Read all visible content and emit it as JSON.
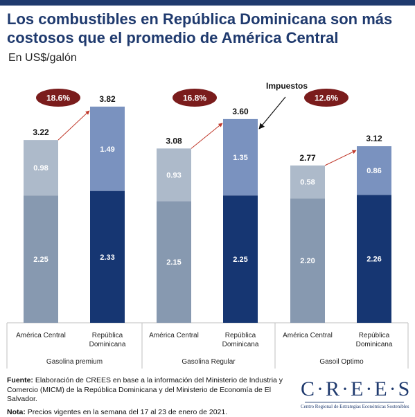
{
  "title": "Los combustibles en República Dominicana son más costosos que el promedio de América Central",
  "subtitle": "En US$/galón",
  "chart_data": {
    "type": "bar",
    "stacked": true,
    "title": "Los combustibles en República Dominicana son más costosos que el promedio de América Central",
    "ylabel": "En US$/galón",
    "ylim": [
      0,
      4.5
    ],
    "grid": false,
    "groups": [
      {
        "name": "Gasolina premium",
        "pct_diff": "18.6%",
        "bars": [
          {
            "category": "América Central",
            "base": 2.25,
            "tax": 0.98,
            "total": "3.22",
            "base_label": "2.25",
            "tax_label": "0.98",
            "base_color": "#8799b0",
            "tax_color": "#adbaca"
          },
          {
            "category": "República Dominicana",
            "base": 2.33,
            "tax": 1.49,
            "total": "3.82",
            "base_label": "2.33",
            "tax_label": "1.49",
            "base_color": "#163672",
            "tax_color": "#7a92bf"
          }
        ]
      },
      {
        "name": "Gasolina Regular",
        "pct_diff": "16.8%",
        "bars": [
          {
            "category": "América Central",
            "base": 2.15,
            "tax": 0.93,
            "total": "3.08",
            "base_label": "2.15",
            "tax_label": "0.93",
            "base_color": "#8799b0",
            "tax_color": "#adbaca"
          },
          {
            "category": "República Dominicana",
            "base": 2.25,
            "tax": 1.35,
            "total": "3.60",
            "base_label": "2.25",
            "tax_label": "1.35",
            "base_color": "#163672",
            "tax_color": "#7a92bf"
          }
        ]
      },
      {
        "name": "Gasoil Optimo",
        "pct_diff": "12.6%",
        "bars": [
          {
            "category": "América Central",
            "base": 2.2,
            "tax": 0.58,
            "total": "2.77",
            "base_label": "2.20",
            "tax_label": "0.58",
            "base_color": "#8799b0",
            "tax_color": "#adbaca"
          },
          {
            "category": "República Dominicana",
            "base": 2.26,
            "tax": 0.86,
            "total": "3.12",
            "base_label": "2.26",
            "tax_label": "0.86",
            "base_color": "#163672",
            "tax_color": "#7a92bf"
          }
        ]
      }
    ],
    "annotation": {
      "text": "Impuestos"
    },
    "colors": {
      "badge": "#7a1c1c",
      "arrow": "#c0392b",
      "axis": "#bfbfbf"
    }
  },
  "footer": {
    "source_label": "Fuente:",
    "source_text": "Elaboración de CREES en base a la información del Ministerio de Industria y Comercio (MICM) de la República Dominicana y del  Ministerio de Economía de El Salvador.",
    "note_label": "Nota:",
    "note_text": "Precios vigentes en la semana del 17 al 23 de enero de 2021."
  },
  "logo": {
    "name": "CREES",
    "tagline": "Centro Regional de Estrategias Económicas Sostenibles"
  }
}
